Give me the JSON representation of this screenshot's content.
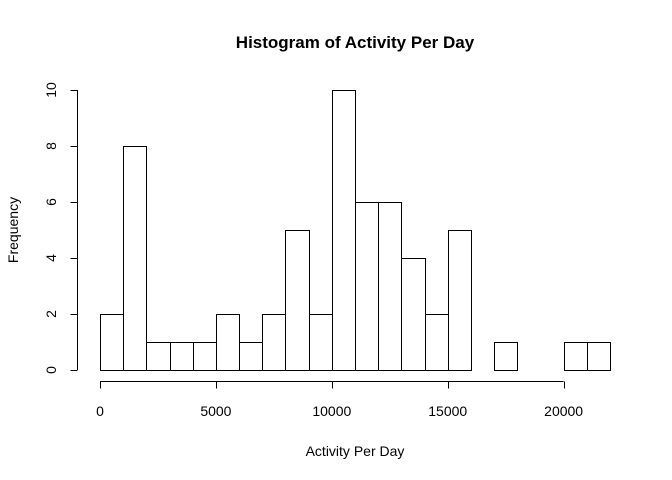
{
  "chart_data": {
    "type": "bar",
    "title": "Histogram of Activity Per Day",
    "xlabel": "Activity Per Day",
    "ylabel": "Frequency",
    "bin_width": 1000,
    "bins_start": [
      0,
      1000,
      2000,
      3000,
      4000,
      5000,
      6000,
      7000,
      8000,
      9000,
      10000,
      11000,
      12000,
      13000,
      14000,
      15000,
      16000,
      17000,
      18000,
      19000,
      20000,
      21000
    ],
    "values": [
      2,
      8,
      1,
      1,
      1,
      2,
      1,
      2,
      5,
      2,
      10,
      6,
      6,
      4,
      2,
      5,
      0,
      1,
      0,
      0,
      1,
      1
    ],
    "xlim": [
      0,
      22000
    ],
    "ylim": [
      0,
      10
    ],
    "x_ticks": [
      0,
      5000,
      10000,
      15000,
      20000
    ],
    "x_tick_labels": [
      "0",
      "5000",
      "10000",
      "15000",
      "20000"
    ],
    "y_ticks": [
      0,
      2,
      4,
      6,
      8,
      10
    ],
    "y_tick_labels": [
      "0",
      "2",
      "4",
      "6",
      "8",
      "10"
    ],
    "grid": false,
    "bar_fill": "#ffffff",
    "bar_stroke": "#000000"
  }
}
